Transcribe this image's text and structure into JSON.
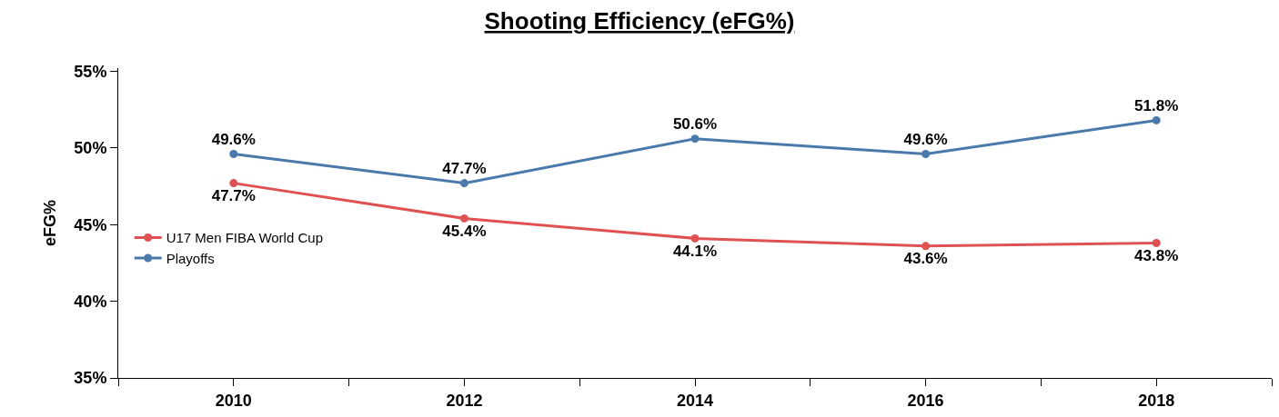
{
  "chart_data": {
    "type": "line",
    "title": "Shooting Efficiency (eFG%)",
    "ylabel": "eFG%",
    "x": [
      2010,
      2012,
      2014,
      2016,
      2018
    ],
    "series": [
      {
        "name": "U17 Men FIBA World Cup",
        "color": "#e05252",
        "values": [
          47.7,
          45.4,
          44.1,
          43.6,
          43.8
        ],
        "value_labels": [
          "47.7%",
          "45.4%",
          "44.1%",
          "43.6%",
          "43.8%"
        ]
      },
      {
        "name": "Playoffs",
        "color": "#4a7aab",
        "values": [
          49.6,
          47.7,
          50.6,
          49.6,
          51.8
        ],
        "value_labels": [
          "49.6%",
          "47.7%",
          "50.6%",
          "49.6%",
          "51.8%"
        ]
      }
    ],
    "xlim": [
      2009,
      2019
    ],
    "xticks": [
      {
        "value": 2009,
        "label": null
      },
      2010,
      {
        "value": 2011,
        "label": null
      },
      2012,
      {
        "value": 2013,
        "label": null
      },
      2014,
      {
        "value": 2015,
        "label": null
      },
      2016,
      {
        "value": 2017,
        "label": null
      },
      2018,
      {
        "value": 2019,
        "label": null
      }
    ],
    "ylim": [
      35,
      55.2
    ],
    "yticks": [
      {
        "value": 35,
        "label": "35%"
      },
      {
        "value": 40,
        "label": "40%"
      },
      {
        "value": 45,
        "label": "45%"
      },
      {
        "value": 50,
        "label": "50%"
      },
      {
        "value": 55,
        "label": "55%"
      }
    ],
    "legend": "left",
    "marker": "circle",
    "line_style": "solid"
  }
}
